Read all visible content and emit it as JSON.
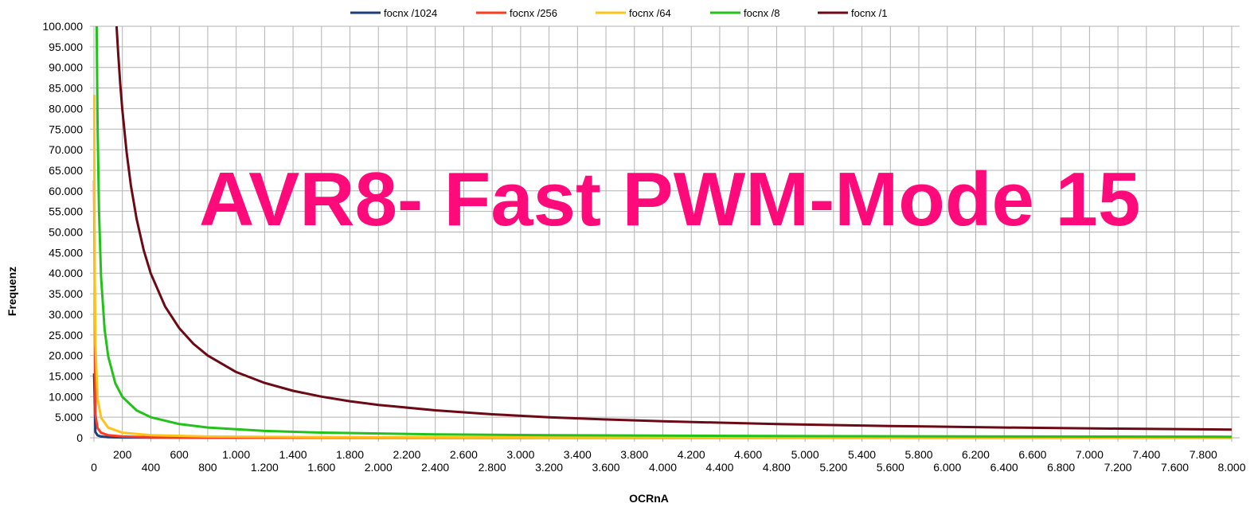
{
  "chart_data": {
    "type": "line",
    "title": "AVR8- Fast PWM-Mode 15",
    "xlabel": "OCRnA",
    "ylabel": "Frequenz",
    "xlim": [
      0,
      8000
    ],
    "ylim": [
      0,
      100000
    ],
    "grid": true,
    "legend_position": "top",
    "x_ticks": [
      0,
      200,
      400,
      600,
      800,
      1000,
      1200,
      1400,
      1600,
      1800,
      2000,
      2200,
      2400,
      2600,
      2800,
      3000,
      3200,
      3400,
      3600,
      3800,
      4000,
      4200,
      4400,
      4600,
      4800,
      5000,
      5200,
      5400,
      5600,
      5800,
      6000,
      6200,
      6400,
      6600,
      6800,
      7000,
      7200,
      7400,
      7600,
      7800,
      8000
    ],
    "x_tick_labels": [
      "0",
      "200",
      "400",
      "600",
      "800",
      "1.000",
      "1.200",
      "1.400",
      "1.600",
      "1.800",
      "2.000",
      "2.200",
      "2.400",
      "2.600",
      "2.800",
      "3.000",
      "3.200",
      "3.400",
      "3.600",
      "3.800",
      "4.000",
      "4.200",
      "4.400",
      "4.600",
      "4.800",
      "5.000",
      "5.200",
      "5.400",
      "5.600",
      "5.800",
      "6.000",
      "6.200",
      "6.400",
      "6.600",
      "6.800",
      "7.000",
      "7.200",
      "7.400",
      "7.600",
      "7.800",
      "8.000"
    ],
    "y_ticks": [
      0,
      5000,
      10000,
      15000,
      20000,
      25000,
      30000,
      35000,
      40000,
      45000,
      50000,
      55000,
      60000,
      65000,
      70000,
      75000,
      80000,
      85000,
      90000,
      95000,
      100000
    ],
    "y_tick_labels": [
      "0",
      "5.000",
      "10.000",
      "15.000",
      "20.000",
      "25.000",
      "30.000",
      "35.000",
      "40.000",
      "45.000",
      "50.000",
      "55.000",
      "60.000",
      "65.000",
      "70.000",
      "75.000",
      "80.000",
      "85.000",
      "90.000",
      "95.000",
      "100.000"
    ],
    "series": [
      {
        "name": "focnx /1024",
        "color": "#1f3d7a",
        "x": [
          1,
          10,
          25,
          50,
          100,
          200,
          400,
          800,
          1600,
          3200,
          6400,
          8000
        ],
        "y": [
          15625,
          1420,
          601,
          306,
          155,
          78,
          39,
          19,
          10,
          5,
          2,
          2
        ]
      },
      {
        "name": "focnx /256",
        "color": "#ff3b1f",
        "x": [
          1,
          10,
          25,
          50,
          100,
          200,
          400,
          800,
          1600,
          3200,
          6400,
          8000
        ],
        "y": [
          62500,
          5682,
          2404,
          1225,
          619,
          311,
          156,
          78,
          39,
          20,
          10,
          8
        ]
      },
      {
        "name": "focnx /64",
        "color": "#ffc21a",
        "x": [
          2,
          3,
          5,
          10,
          25,
          50,
          100,
          200,
          400,
          800,
          1600,
          3200,
          6400,
          8000
        ],
        "y": [
          83333,
          62500,
          41667,
          22727,
          9615,
          4902,
          2475,
          1244,
          623,
          312,
          156,
          78,
          39,
          31
        ]
      },
      {
        "name": "focnx /8",
        "color": "#22c21a",
        "x": [
          19,
          25,
          35,
          50,
          75,
          100,
          150,
          200,
          300,
          400,
          600,
          800,
          1200,
          1600,
          2400,
          3200,
          4800,
          6400,
          8000
        ],
        "y": [
          100000,
          76923,
          55556,
          39216,
          26316,
          19802,
          13245,
          9950,
          6645,
          4988,
          3328,
          2497,
          1665,
          1249,
          833,
          625,
          417,
          312,
          250
        ]
      },
      {
        "name": "focnx /1",
        "color": "#6b0a14",
        "x": [
          159,
          170,
          185,
          200,
          230,
          260,
          300,
          350,
          400,
          500,
          600,
          700,
          800,
          1000,
          1200,
          1400,
          1600,
          1800,
          2000,
          2400,
          2800,
          3200,
          3600,
          4000,
          4800,
          5600,
          6400,
          7200,
          8000
        ],
        "y": [
          100000,
          93567,
          86022,
          79602,
          69264,
          61303,
          53156,
          45584,
          39900,
          31936,
          26622,
          22825,
          19975,
          15984,
          13322,
          11420,
          9994,
          8884,
          7996,
          6664,
          5712,
          4998,
          4443,
          3999,
          3333,
          2857,
          2500,
          2222,
          2000
        ]
      }
    ]
  }
}
